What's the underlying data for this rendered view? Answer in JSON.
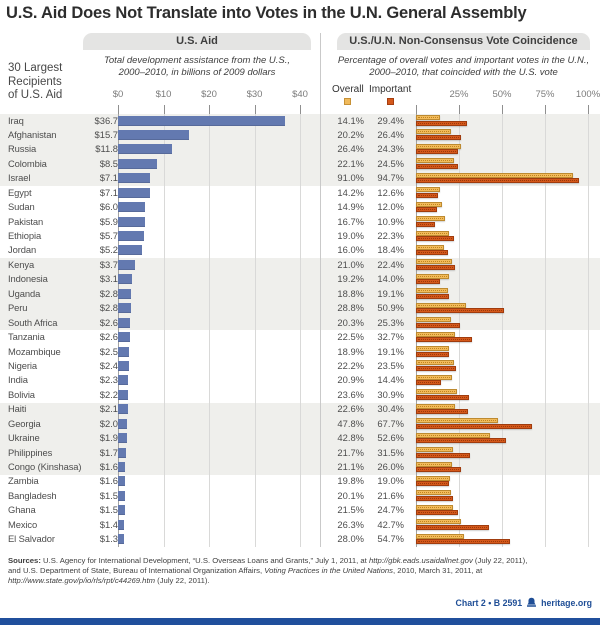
{
  "title": "U.S. Aid Does Not Translate into Votes in the U.N. General Assembly",
  "aid_recipients_label": [
    "30 Largest",
    "Recipients",
    "of U.S. Aid"
  ],
  "left_panel": {
    "header": "U.S. Aid",
    "subtitle": [
      "Total development assistance from the U.S.,",
      "2000–2010, in billions of 2009 dollars"
    ]
  },
  "right_panel": {
    "header": "U.S./U.N. Non-Consensus Vote Coincidence",
    "subtitle": [
      "Percentage of overall votes and important votes in the U.N.,",
      "2000–2010, that coincided with the U.S. vote"
    ],
    "legend": {
      "overall": "Overall",
      "important": "Important"
    }
  },
  "chart_data": {
    "type": "bar",
    "orientation": "horizontal",
    "band_groups_of": 5,
    "grid": true,
    "categories": [
      "Iraq",
      "Afghanistan",
      "Russia",
      "Colombia",
      "Israel",
      "Egypt",
      "Sudan",
      "Pakistan",
      "Ethiopia",
      "Jordan",
      "Kenya",
      "Indonesia",
      "Uganda",
      "Peru",
      "South Africa",
      "Tanzania",
      "Mozambique",
      "Nigeria",
      "India",
      "Bolivia",
      "Haiti",
      "Georgia",
      "Ukraine",
      "Philippines",
      "Congo (Kinshasa)",
      "Zambia",
      "Bangladesh",
      "Ghana",
      "Mexico",
      "El Salvador"
    ],
    "x_ticks_aid": [
      "$0",
      "$10",
      "$20",
      "$30",
      "$40"
    ],
    "x_ticks_votes": [
      "25%",
      "50%",
      "75%",
      "100%"
    ],
    "series": [
      {
        "name": "U.S. Aid (billions of 2009 dollars)",
        "color": "#6379b0",
        "axis_range": [
          0,
          40
        ],
        "values": [
          36.7,
          15.7,
          11.8,
          8.5,
          7.1,
          7.1,
          6.0,
          5.9,
          5.7,
          5.2,
          3.7,
          3.1,
          2.8,
          2.8,
          2.6,
          2.6,
          2.5,
          2.4,
          2.3,
          2.2,
          2.1,
          2.0,
          1.9,
          1.7,
          1.6,
          1.6,
          1.5,
          1.5,
          1.4,
          1.3
        ],
        "labels": [
          "$36.7",
          "$15.7",
          "$11.8",
          "$8.5",
          "$7.1",
          "$7.1",
          "$6.0",
          "$5.9",
          "$5.7",
          "$5.2",
          "$3.7",
          "$3.1",
          "$2.8",
          "$2.8",
          "$2.6",
          "$2.6",
          "$2.5",
          "$2.4",
          "$2.3",
          "$2.2",
          "$2.1",
          "$2.0",
          "$1.9",
          "$1.7",
          "$1.6",
          "$1.6",
          "$1.5",
          "$1.5",
          "$1.4",
          "$1.3"
        ]
      },
      {
        "name": "Overall vote coincidence with U.S.",
        "color": "#f0ba5c",
        "axis_range": [
          0,
          100
        ],
        "values": [
          14.1,
          20.2,
          26.4,
          22.1,
          91.0,
          14.2,
          14.9,
          16.7,
          19.0,
          16.0,
          21.0,
          19.2,
          18.8,
          28.8,
          20.3,
          22.5,
          18.9,
          22.2,
          20.9,
          23.6,
          22.6,
          47.8,
          42.8,
          21.7,
          21.1,
          19.8,
          20.1,
          21.5,
          26.3,
          28.0
        ],
        "labels": [
          "14.1%",
          "20.2%",
          "26.4%",
          "22.1%",
          "91.0%",
          "14.2%",
          "14.9%",
          "16.7%",
          "19.0%",
          "16.0%",
          "21.0%",
          "19.2%",
          "18.8%",
          "28.8%",
          "20.3%",
          "22.5%",
          "18.9%",
          "22.2%",
          "20.9%",
          "23.6%",
          "22.6%",
          "47.8%",
          "42.8%",
          "21.7%",
          "21.1%",
          "19.8%",
          "20.1%",
          "21.5%",
          "26.3%",
          "28.0%"
        ]
      },
      {
        "name": "Important vote coincidence with U.S.",
        "color": "#d4581a",
        "axis_range": [
          0,
          100
        ],
        "values": [
          29.4,
          26.4,
          24.3,
          24.5,
          94.7,
          12.6,
          12.0,
          10.9,
          22.3,
          18.4,
          22.4,
          14.0,
          19.1,
          50.9,
          25.3,
          32.7,
          19.1,
          23.5,
          14.4,
          30.9,
          30.4,
          67.7,
          52.6,
          31.5,
          26.0,
          19.0,
          21.6,
          24.7,
          42.7,
          54.7
        ],
        "labels": [
          "29.4%",
          "26.4%",
          "24.3%",
          "24.5%",
          "94.7%",
          "12.6%",
          "12.0%",
          "10.9%",
          "22.3%",
          "18.4%",
          "22.4%",
          "14.0%",
          "19.1%",
          "50.9%",
          "25.3%",
          "32.7%",
          "19.1%",
          "23.5%",
          "14.4%",
          "30.9%",
          "30.4%",
          "67.7%",
          "52.6%",
          "31.5%",
          "26.0%",
          "19.0%",
          "21.6%",
          "24.7%",
          "42.7%",
          "54.7%"
        ]
      }
    ]
  },
  "footer": {
    "sources_lines": [
      [
        {
          "t": "Sources: ",
          "b": true
        },
        {
          "t": "U.S. Agency for International Development, “U.S. Overseas Loans and Grants,” July 1, 2011, at "
        },
        {
          "t": "http://gbk.eads.usaidallnet.gov",
          "i": true
        },
        {
          "t": " (July 22, 2011),"
        }
      ],
      [
        {
          "t": "and U.S. Department of State, Bureau of International Organization Affairs, "
        },
        {
          "t": "Voting Practices in the United Nations",
          "i": true
        },
        {
          "t": ", 2010, March 31, 2011, at"
        }
      ],
      [
        {
          "t": "http://www.state.gov/p/io/rls/rpt/c44269.htm",
          "i": true
        },
        {
          "t": " (July 22, 2011)."
        }
      ]
    ],
    "credit": "Chart 2 • B 2591",
    "site": "heritage.org"
  },
  "colors": {
    "aid_bar": "#6379b0",
    "overall_bar": "#f0ba5c",
    "important_bar": "#d4581a",
    "row_band": "#efefec",
    "heritage_blue": "#1f4e96",
    "footer_bar": "#204f9c"
  }
}
